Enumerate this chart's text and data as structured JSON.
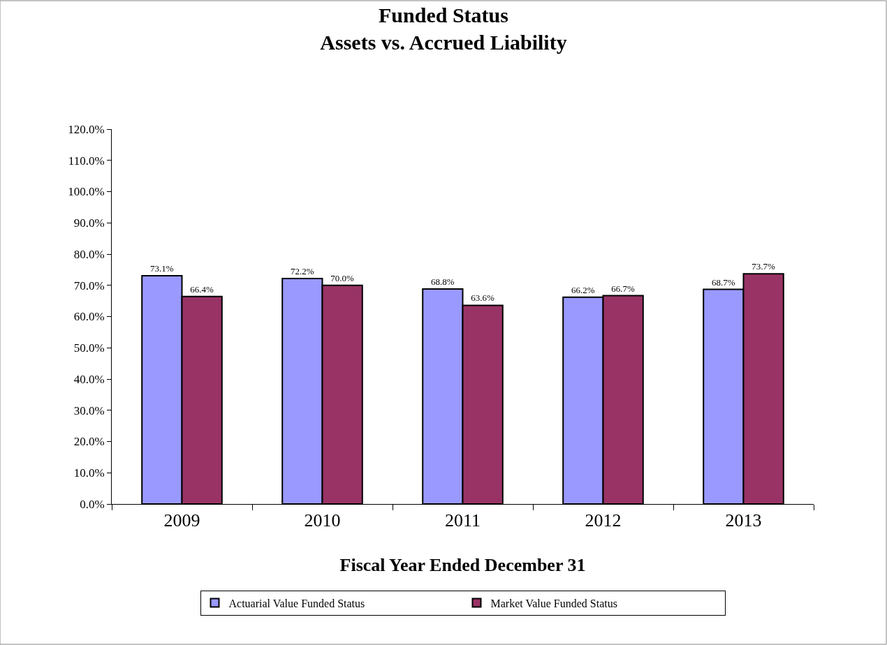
{
  "chart_data": {
    "type": "bar",
    "title": "Funded Status\nAssets vs. Accrued Liability",
    "xlabel": "Fiscal Year Ended December 31",
    "categories": [
      "2009",
      "2010",
      "2011",
      "2012",
      "2013"
    ],
    "series": [
      {
        "name": "Actuarial Value Funded Status",
        "color": "#9999ff",
        "values": [
          73.1,
          72.2,
          68.8,
          66.2,
          68.7
        ],
        "value_labels": [
          "73.1%",
          "72.2%",
          "68.8%",
          "66.2%",
          "68.7%"
        ]
      },
      {
        "name": "Market Value Funded Status",
        "color": "#993366",
        "values": [
          66.4,
          70.0,
          63.6,
          66.7,
          73.7
        ],
        "value_labels": [
          "66.4%",
          "70.0%",
          "63.6%",
          "66.7%",
          "73.7%"
        ]
      }
    ],
    "ylim": [
      0,
      120
    ],
    "yticks": [
      {
        "value": 0,
        "label": "0.0%"
      },
      {
        "value": 10,
        "label": "10.0%"
      },
      {
        "value": 20,
        "label": "20.0%"
      },
      {
        "value": 30,
        "label": "30.0%"
      },
      {
        "value": 40,
        "label": "40.0%"
      },
      {
        "value": 50,
        "label": "50.0%"
      },
      {
        "value": 60,
        "label": "60.0%"
      },
      {
        "value": 70,
        "label": "70.0%"
      },
      {
        "value": 80,
        "label": "80.0%"
      },
      {
        "value": 90,
        "label": "90.0%"
      },
      {
        "value": 100,
        "label": "100.0%"
      },
      {
        "value": 110,
        "label": "110.0%"
      },
      {
        "value": 120,
        "label": "120.0%"
      }
    ],
    "grid": false,
    "legend": "bottom"
  }
}
